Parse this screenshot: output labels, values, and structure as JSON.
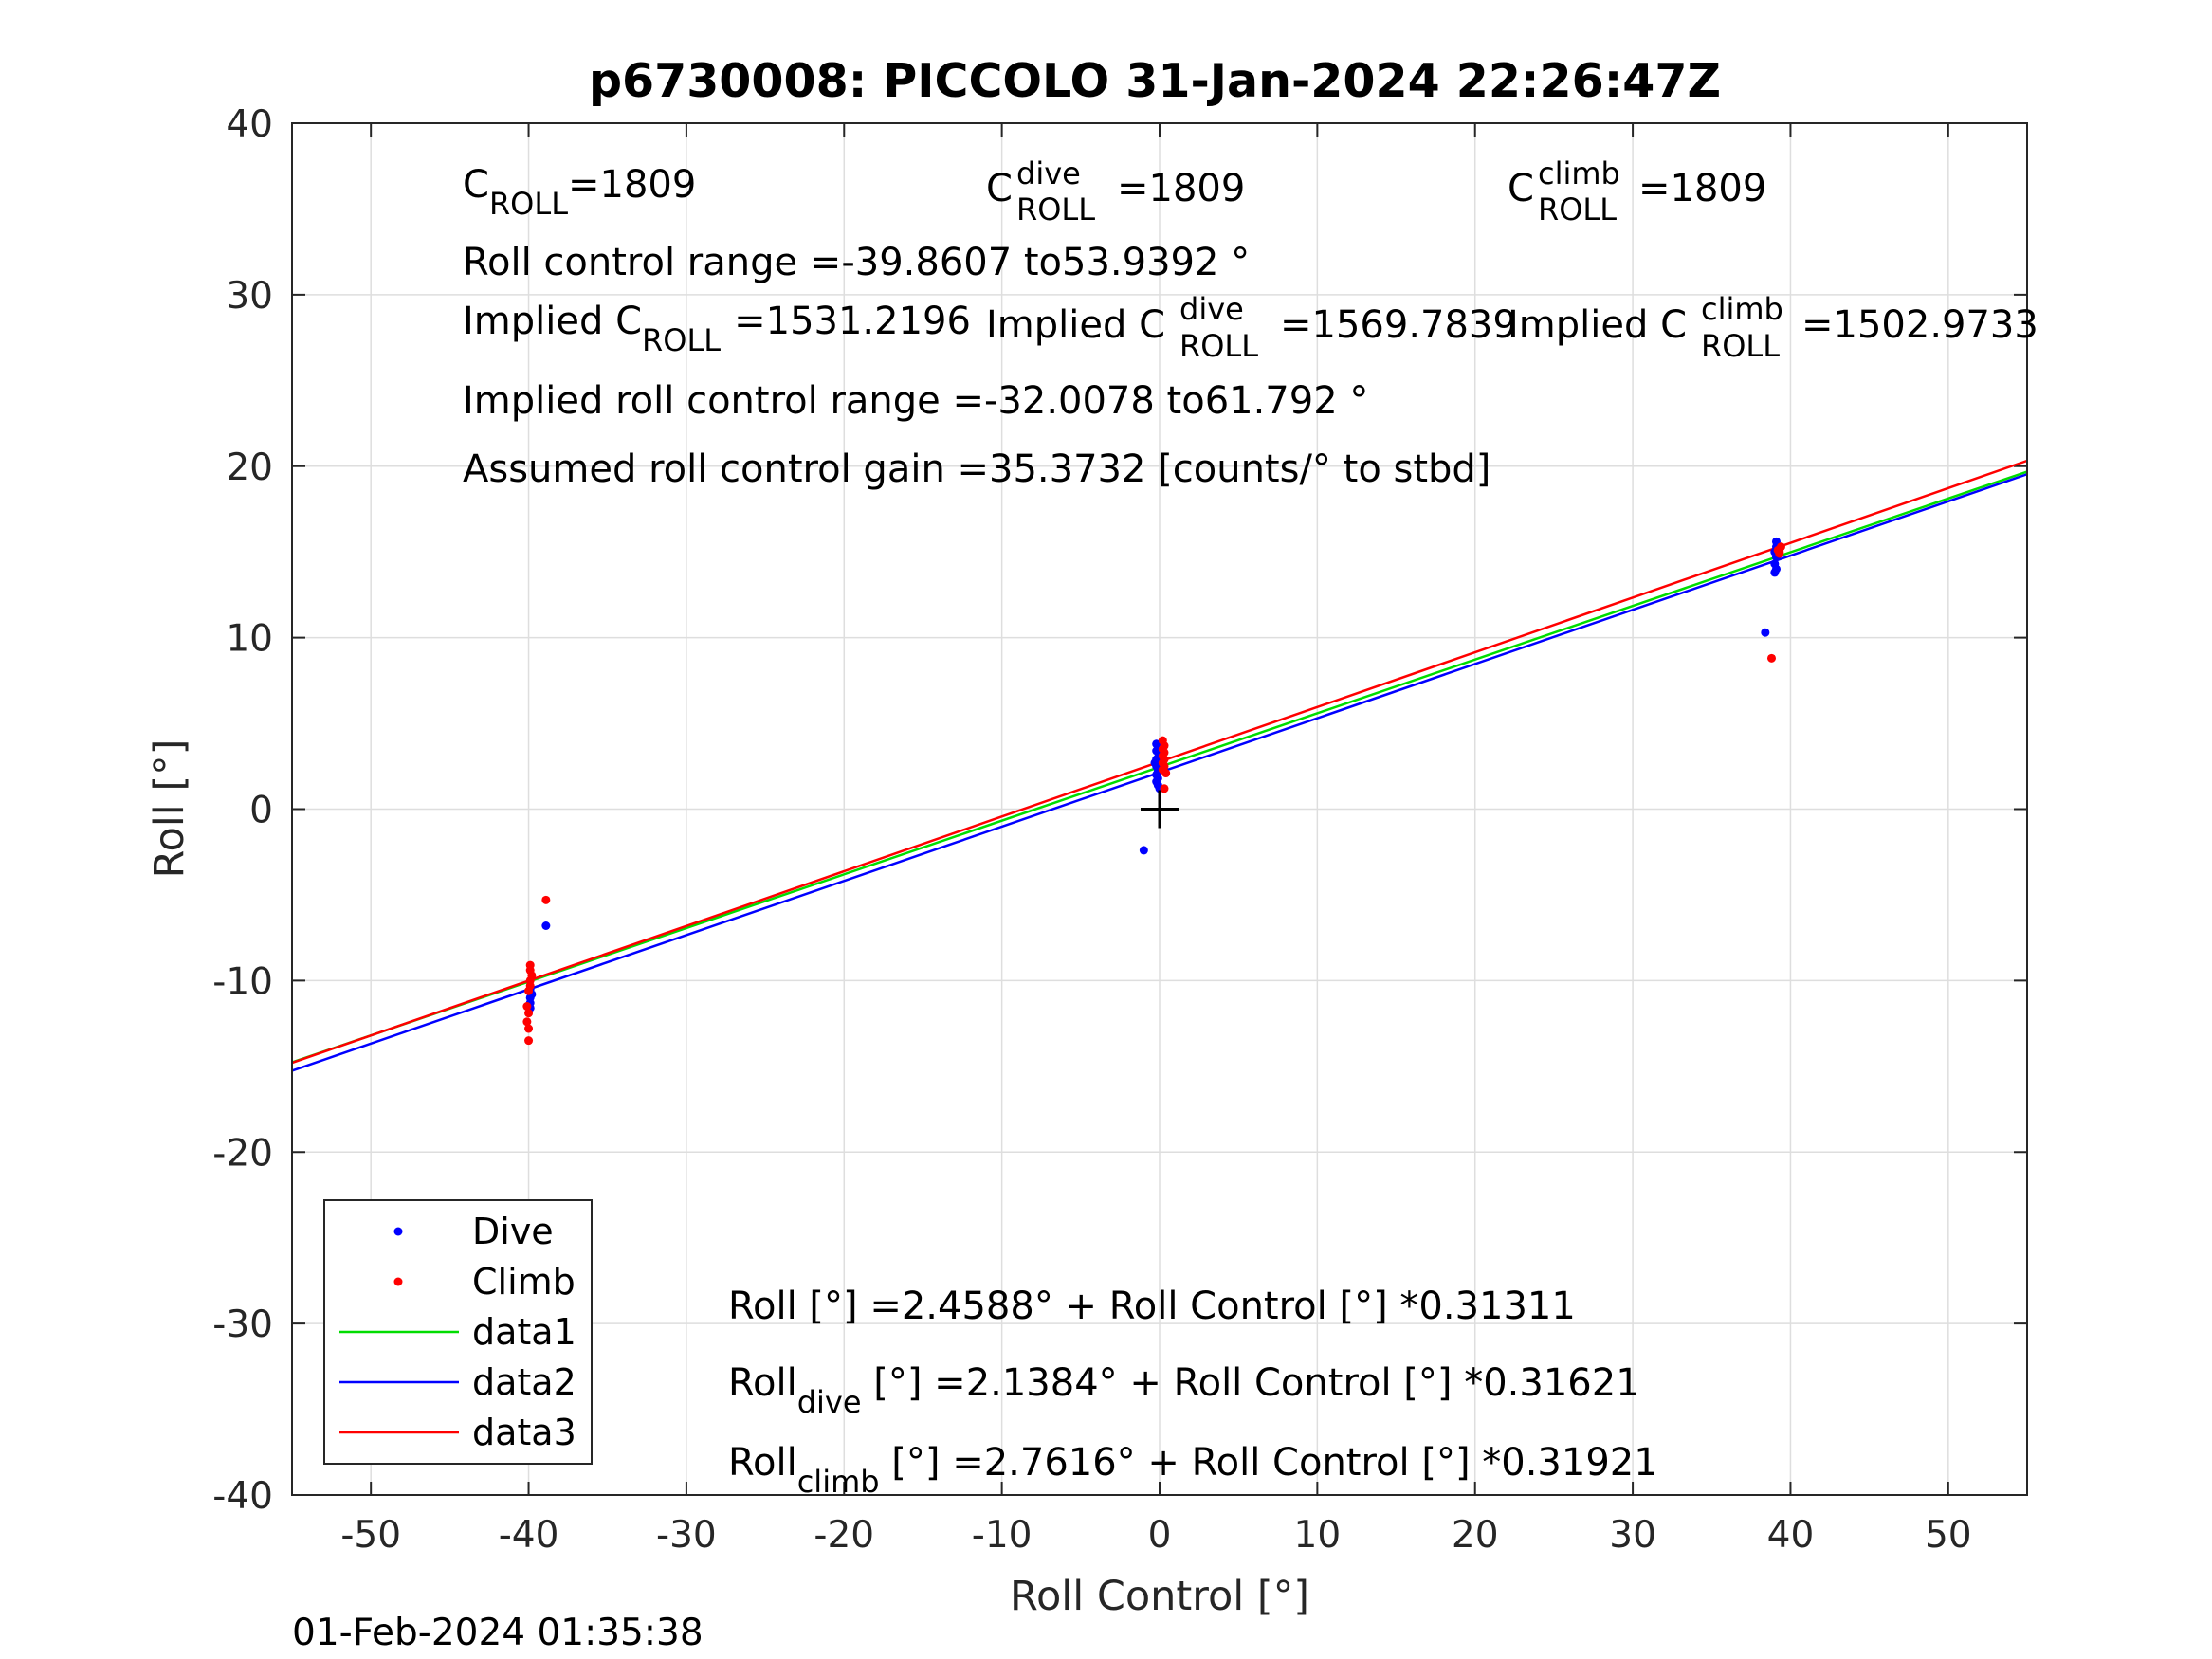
{
  "chart_data": {
    "type": "scatter",
    "title": "p6730008: PICCOLO 31-Jan-2024 22:26:47Z",
    "xlabel": "Roll Control [°]",
    "ylabel": "Roll [°]",
    "xlim": [
      -55,
      55
    ],
    "ylim": [
      -40,
      40
    ],
    "xticks": [
      -50,
      -40,
      -30,
      -20,
      -10,
      0,
      10,
      20,
      30,
      40,
      50
    ],
    "yticks": [
      -40,
      -30,
      -20,
      -10,
      0,
      10,
      20,
      30,
      40
    ],
    "grid": true,
    "legend_position": "bottom-left",
    "colors": {
      "dive": "#0000ff",
      "climb": "#ff0000",
      "data1": "#00dd00",
      "data2": "#0000ff",
      "data3": "#ff0000"
    },
    "scatter_series": [
      {
        "name": "Dive",
        "color": "#0000ff",
        "points": [
          [
            -39.9,
            -11.0
          ],
          [
            -39.9,
            -11.3
          ],
          [
            -39.8,
            -10.8
          ],
          [
            -39.9,
            -11.6
          ],
          [
            -39.9,
            -10.5
          ],
          [
            -38.9,
            -6.8
          ],
          [
            -0.2,
            3.8
          ],
          [
            -0.2,
            3.4
          ],
          [
            -0.1,
            3.0
          ],
          [
            -0.3,
            2.7
          ],
          [
            -0.2,
            2.5
          ],
          [
            -0.1,
            2.2
          ],
          [
            -0.2,
            2.0
          ],
          [
            -0.1,
            1.8
          ],
          [
            -0.2,
            1.6
          ],
          [
            -0.1,
            1.4
          ],
          [
            0.0,
            1.2
          ],
          [
            -0.2,
            2.9
          ],
          [
            0.1,
            3.2
          ],
          [
            -1.0,
            -2.4
          ],
          [
            39.1,
            15.6
          ],
          [
            39.1,
            15.3
          ],
          [
            39.0,
            15.0
          ],
          [
            39.1,
            14.7
          ],
          [
            39.0,
            14.3
          ],
          [
            39.1,
            14.0
          ],
          [
            39.0,
            13.8
          ],
          [
            38.4,
            10.3
          ]
        ]
      },
      {
        "name": "Climb",
        "color": "#ff0000",
        "points": [
          [
            -39.9,
            -9.1
          ],
          [
            -39.9,
            -9.4
          ],
          [
            -39.8,
            -9.7
          ],
          [
            -39.9,
            -10.0
          ],
          [
            -39.9,
            -10.3
          ],
          [
            -40.0,
            -10.6
          ],
          [
            -40.1,
            -11.5
          ],
          [
            -40.0,
            -11.9
          ],
          [
            -40.1,
            -12.4
          ],
          [
            -40.0,
            -12.8
          ],
          [
            -40.0,
            -13.5
          ],
          [
            -38.9,
            -5.3
          ],
          [
            0.2,
            4.0
          ],
          [
            0.3,
            3.7
          ],
          [
            0.2,
            3.5
          ],
          [
            0.3,
            3.3
          ],
          [
            0.2,
            3.1
          ],
          [
            0.3,
            2.9
          ],
          [
            0.2,
            2.7
          ],
          [
            0.3,
            2.5
          ],
          [
            0.2,
            2.3
          ],
          [
            0.4,
            2.1
          ],
          [
            0.3,
            1.2
          ],
          [
            39.3,
            15.0
          ],
          [
            39.4,
            15.3
          ],
          [
            39.3,
            14.9
          ],
          [
            39.2,
            15.1
          ],
          [
            38.8,
            8.8
          ]
        ]
      }
    ],
    "line_series": [
      {
        "name": "data1",
        "color": "#00dd00",
        "intercept": 2.4588,
        "slope": 0.31311
      },
      {
        "name": "data2",
        "color": "#0000ff",
        "intercept": 2.1384,
        "slope": 0.31621
      },
      {
        "name": "data3",
        "color": "#ff0000",
        "intercept": 2.7616,
        "slope": 0.31921
      }
    ],
    "origin_marker": [
      0,
      0
    ],
    "legend": [
      {
        "label": "Dive",
        "kind": "dot",
        "color": "#0000ff"
      },
      {
        "label": "Climb",
        "kind": "dot",
        "color": "#ff0000"
      },
      {
        "label": "data1",
        "kind": "line",
        "color": "#00dd00"
      },
      {
        "label": "data2",
        "kind": "line",
        "color": "#0000ff"
      },
      {
        "label": "data3",
        "kind": "line",
        "color": "#ff0000"
      }
    ],
    "annotations": {
      "c_roll": {
        "base": "C",
        "sub": "ROLL",
        "value": "=1809"
      },
      "c_roll_dive": {
        "base": "C",
        "sup": "dive",
        "sub": "ROLL",
        "value": "=1809"
      },
      "c_roll_climb": {
        "base": "C",
        "sup": "climb",
        "sub": "ROLL",
        "value": "=1809"
      },
      "roll_control_range": "Roll control range =-39.8607 to53.9392 °",
      "implied_c_roll": {
        "prefix": "Implied C",
        "sub": "ROLL",
        "value": "=1531.2196"
      },
      "implied_c_roll_dive": {
        "prefix": "Implied C",
        "sup": "dive",
        "sub": "ROLL",
        "value": "=1569.7839"
      },
      "implied_c_roll_climb": {
        "prefix": "Implied C",
        "sup": "climb",
        "sub": "ROLL",
        "value": "=1502.9733"
      },
      "implied_roll_control_range": "Implied roll control range =-32.0078 to61.792 °",
      "assumed_gain": "Assumed roll control gain =35.3732 [counts/° to stbd]",
      "fit_all": "Roll [°] =2.4588° + Roll Control [°] *0.31311",
      "fit_dive": {
        "base": "Roll",
        "sub": "dive",
        "rest": " [°] =2.1384° + Roll Control [°] *0.31621"
      },
      "fit_climb": {
        "base": "Roll",
        "sub": "climb",
        "rest": " [°] =2.7616° + Roll Control [°] *0.31921"
      }
    },
    "timestamp": "01-Feb-2024 01:35:38"
  }
}
